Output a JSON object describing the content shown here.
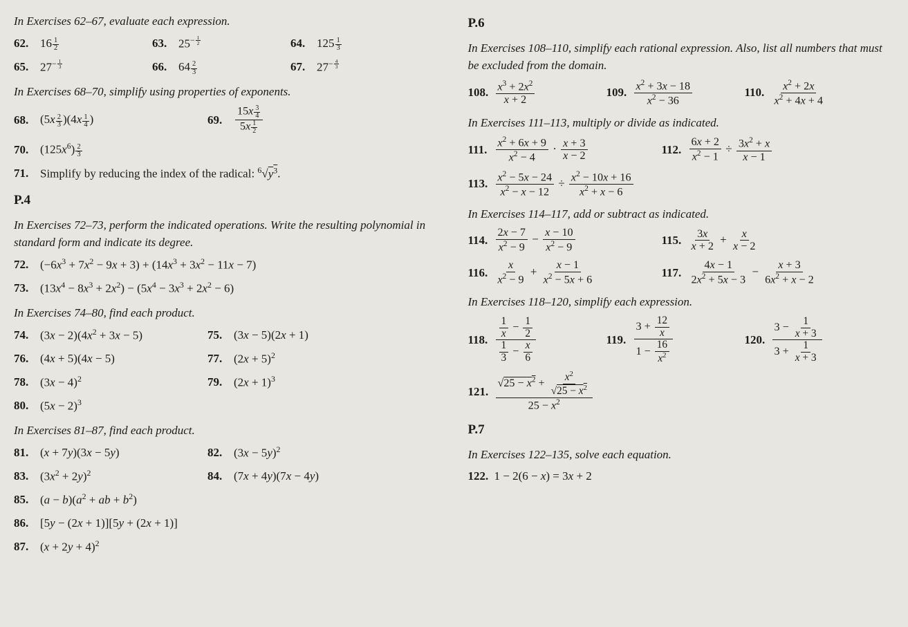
{
  "left": {
    "instr_62_67": "In Exercises 62–67, evaluate each expression.",
    "ex62": {
      "n": "62.",
      "expr": "16<span class='sfrac'><span class='fn'>1</span><span class='fd'>2</span></span>"
    },
    "ex63": {
      "n": "63.",
      "expr": "25<sup>−<span class='sfrac'><span class='fn'>1</span><span class='fd'>2</span></span></sup>"
    },
    "ex64": {
      "n": "64.",
      "expr": "125<span class='sfrac'><span class='fn'>1</span><span class='fd'>3</span></span>"
    },
    "ex65": {
      "n": "65.",
      "expr": "27<sup>−<span class='sfrac'><span class='fn'>1</span><span class='fd'>3</span></span></sup>"
    },
    "ex66": {
      "n": "66.",
      "expr": "64<span class='sfrac'><span class='fn'>2</span><span class='fd'>3</span></span>"
    },
    "ex67": {
      "n": "67.",
      "expr": "27<sup>−<span class='sfrac'><span class='fn'>4</span><span class='fd'>3</span></span></sup>"
    },
    "instr_68_70": "In Exercises 68–70, simplify using properties of exponents.",
    "ex68": {
      "n": "68.",
      "expr": "(5<i>x</i><span class='sfrac'><span class='fn'>2</span><span class='fd'>3</span></span>)(4<i>x</i><span class='sfrac'><span class='fn'>1</span><span class='fd'>4</span></span>)"
    },
    "ex69": {
      "n": "69.",
      "expr": "<span class='frac'><span class='fn'>15<i>x</i><span class='sfrac'><span class='fn'>3</span><span class='fd'>4</span></span></span><span class='fd'>5<i>x</i><span class='sfrac'><span class='fn'>1</span><span class='fd'>2</span></span></span></span>"
    },
    "ex70": {
      "n": "70.",
      "expr": "(125<i>x</i><sup>6</sup>)<span class='sfrac'><span class='fn'>2</span><span class='fd'>3</span></span>"
    },
    "ex71": {
      "n": "71.",
      "expr": "Simplify by reducing the index of the radical: <sup>6</sup>√<span class='radical'><i>y</i><sup>3</sup></span>."
    },
    "p4": "P.4",
    "instr_72_73": "In Exercises 72–73, perform the indicated operations. Write the resulting polynomial in standard form and indicate its degree.",
    "ex72": {
      "n": "72.",
      "expr": "(−6<i>x</i><sup>3</sup> + 7<i>x</i><sup>2</sup> − 9<i>x</i> + 3) + (14<i>x</i><sup>3</sup> + 3<i>x</i><sup>2</sup> − 11<i>x</i> − 7)"
    },
    "ex73": {
      "n": "73.",
      "expr": "(13<i>x</i><sup>4</sup> − 8<i>x</i><sup>3</sup> + 2<i>x</i><sup>2</sup>) − (5<i>x</i><sup>4</sup> − 3<i>x</i><sup>3</sup> + 2<i>x</i><sup>2</sup> − 6)"
    },
    "instr_74_80": "In Exercises 74–80, find each product.",
    "ex74": {
      "n": "74.",
      "expr": "(3<i>x</i> − 2)(4<i>x</i><sup>2</sup> + 3<i>x</i> − 5)"
    },
    "ex75": {
      "n": "75.",
      "expr": "(3<i>x</i> − 5)(2<i>x</i> + 1)"
    },
    "ex76": {
      "n": "76.",
      "expr": "(4<i>x</i> + 5)(4<i>x</i> − 5)"
    },
    "ex77": {
      "n": "77.",
      "expr": "(2<i>x</i> + 5)<sup>2</sup>"
    },
    "ex78": {
      "n": "78.",
      "expr": "(3<i>x</i> − 4)<sup>2</sup>"
    },
    "ex79": {
      "n": "79.",
      "expr": "(2<i>x</i> + 1)<sup>3</sup>"
    },
    "ex80": {
      "n": "80.",
      "expr": "(5<i>x</i> − 2)<sup>3</sup>"
    },
    "instr_81_87": "In Exercises 81–87, find each product.",
    "ex81": {
      "n": "81.",
      "expr": "(<i>x</i> + 7<i>y</i>)(3<i>x</i> − 5<i>y</i>)"
    },
    "ex82": {
      "n": "82.",
      "expr": "(3<i>x</i> − 5<i>y</i>)<sup>2</sup>"
    },
    "ex83": {
      "n": "83.",
      "expr": "(3<i>x</i><sup>2</sup> + 2<i>y</i>)<sup>2</sup>"
    },
    "ex84": {
      "n": "84.",
      "expr": "(7<i>x</i> + 4<i>y</i>)(7<i>x</i> − 4<i>y</i>)"
    },
    "ex85": {
      "n": "85.",
      "expr": "(<i>a</i> − <i>b</i>)(<i>a</i><sup>2</sup> + <i>ab</i> + <i>b</i><sup>2</sup>)"
    },
    "ex86": {
      "n": "86.",
      "expr": "[5<i>y</i> − (2<i>x</i> + 1)][5<i>y</i> + (2<i>x</i> + 1)]"
    },
    "ex87": {
      "n": "87.",
      "expr": "(<i>x</i> + 2<i>y</i> + 4)<sup>2</sup>"
    }
  },
  "right": {
    "p6": "P.6",
    "instr_108_110": "In Exercises 108–110, simplify each rational expression. Also, list all numbers that must be excluded from the domain.",
    "ex108": {
      "n": "108.",
      "expr": "<span class='frac'><span class='fn'><i>x</i><sup>3</sup> + 2<i>x</i><sup>2</sup></span><span class='fd'><i>x</i> + 2</span></span>"
    },
    "ex109": {
      "n": "109.",
      "expr": "<span class='frac'><span class='fn'><i>x</i><sup>2</sup> + 3<i>x</i> − 18</span><span class='fd'><i>x</i><sup>2</sup> − 36</span></span>"
    },
    "ex110": {
      "n": "110.",
      "expr": "<span class='frac'><span class='fn'><i>x</i><sup>2</sup> + 2<i>x</i></span><span class='fd'><i>x</i><sup>2</sup> + 4<i>x</i> + 4</span></span>"
    },
    "instr_111_113": "In Exercises 111–113, multiply or divide as indicated.",
    "ex111": {
      "n": "111.",
      "expr": "<span class='frac'><span class='fn'><i>x</i><sup>2</sup> + 6<i>x</i> + 9</span><span class='fd'><i>x</i><sup>2</sup> − 4</span></span> · <span class='frac'><span class='fn'><i>x</i> + 3</span><span class='fd'><i>x</i> − 2</span></span>"
    },
    "ex112": {
      "n": "112.",
      "expr": "<span class='frac'><span class='fn'>6<i>x</i> + 2</span><span class='fd'><i>x</i><sup>2</sup> − 1</span></span> ÷ <span class='frac'><span class='fn'>3<i>x</i><sup>2</sup> + <i>x</i></span><span class='fd'><i>x</i> − 1</span></span>"
    },
    "ex113": {
      "n": "113.",
      "expr": "<span class='frac'><span class='fn'><i>x</i><sup>2</sup> − 5<i>x</i> − 24</span><span class='fd'><i>x</i><sup>2</sup> − <i>x</i> − 12</span></span> ÷ <span class='frac'><span class='fn'><i>x</i><sup>2</sup> − 10<i>x</i> + 16</span><span class='fd'><i>x</i><sup>2</sup> + <i>x</i> − 6</span></span>"
    },
    "instr_114_117": "In Exercises 114–117, add or subtract as indicated.",
    "ex114": {
      "n": "114.",
      "expr": "<span class='frac'><span class='fn'>2<i>x</i> − 7</span><span class='fd'><i>x</i><sup>2</sup> − 9</span></span> − <span class='frac'><span class='fn'><i>x</i> − 10</span><span class='fd'><i>x</i><sup>2</sup> − 9</span></span>"
    },
    "ex115": {
      "n": "115.",
      "expr": "<span class='frac'><span class='fn'>3<i>x</i></span><span class='fd'><i>x</i> + 2</span></span> + <span class='frac'><span class='fn'><i>x</i></span><span class='fd'><i>x</i> − 2</span></span>"
    },
    "ex116": {
      "n": "116.",
      "expr": "<span class='frac'><span class='fn'><i>x</i></span><span class='fd'><i>x</i><sup>2</sup> − 9</span></span> + <span class='frac'><span class='fn'><i>x</i> − 1</span><span class='fd'><i>x</i><sup>2</sup> − 5<i>x</i> + 6</span></span>"
    },
    "ex117": {
      "n": "117.",
      "expr": "<span class='frac'><span class='fn'>4<i>x</i> − 1</span><span class='fd'>2<i>x</i><sup>2</sup> + 5<i>x</i> − 3</span></span> − <span class='frac'><span class='fn'><i>x</i> + 3</span><span class='fd'>6<i>x</i><sup>2</sup> + <i>x</i> − 2</span></span>"
    },
    "instr_118_120": "In Exercises 118–120, simplify each expression.",
    "ex118": {
      "n": "118.",
      "expr": "<span class='frac'><span class='fn'><span class='frac'><span class='fn'>1</span><span class='fd'><i>x</i></span></span> − <span class='frac'><span class='fn'>1</span><span class='fd'>2</span></span></span><span class='fd'><span class='frac'><span class='fn'>1</span><span class='fd'>3</span></span> − <span class='frac'><span class='fn'><i>x</i></span><span class='fd'>6</span></span></span></span>"
    },
    "ex119": {
      "n": "119.",
      "expr": "<span class='frac'><span class='fn'>3 + <span class='frac'><span class='fn'>12</span><span class='fd'><i>x</i></span></span></span><span class='fd'>1 − <span class='frac'><span class='fn'>16</span><span class='fd'><i>x</i><sup>2</sup></span></span></span></span>"
    },
    "ex120": {
      "n": "120.",
      "expr": "<span class='frac'><span class='fn'>3 − <span class='frac'><span class='fn'>1</span><span class='fd'><i>x</i> + 3</span></span></span><span class='fd'>3 + <span class='frac'><span class='fn'>1</span><span class='fd'><i>x</i> + 3</span></span></span></span>"
    },
    "ex121": {
      "n": "121.",
      "expr": "<span class='frac'><span class='fn'>√<span class='radical'>25 − <i>x</i><sup>2</sup></span> + <span class='frac'><span class='fn'><i>x</i><sup>2</sup></span><span class='fd'>√<span class='radical'>25 − <i>x</i><sup>2</sup></span></span></span></span><span class='fd'>25 − <i>x</i><sup>2</sup></span></span>"
    },
    "p7": "P.7",
    "instr_122_135": "In Exercises 122–135, solve each equation.",
    "ex122": {
      "n": "122.",
      "expr": "1 − 2(6 − <i>x</i>) = 3<i>x</i> + 2"
    }
  }
}
